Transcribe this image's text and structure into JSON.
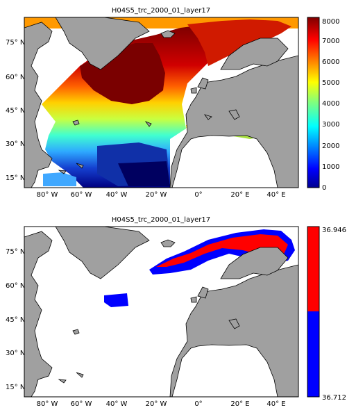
{
  "panels": [
    {
      "title": "H04S5_trc_2000_01_layer17",
      "lat_ticks": [
        "75° N",
        "60° N",
        "45° N",
        "30° N",
        "15° N"
      ],
      "lon_ticks": [
        "80° W",
        "60° W",
        "40° W",
        "20° W",
        "0°",
        "20° E",
        "40° E"
      ],
      "colorbar": {
        "ticks": [
          "8000",
          "7000",
          "6000",
          "5000",
          "4000",
          "3000",
          "2000",
          "1000",
          "0"
        ],
        "colormap": "jet"
      }
    },
    {
      "title": "H04S5_trc_2000_01_layer17",
      "lat_ticks": [
        "75° N",
        "60° N",
        "45° N",
        "30° N",
        "15° N"
      ],
      "lon_ticks": [
        "80° W",
        "60° W",
        "40° W",
        "20° W",
        "0°",
        "20° E",
        "40° E"
      ],
      "colorbar": {
        "ticks": [
          "36.946",
          "36.712"
        ],
        "colors": [
          "#ff0000",
          "#0000ff"
        ]
      }
    }
  ],
  "colors": {
    "land": "#a0a0a0",
    "ocean": "#ffffff",
    "frame": "#000000"
  }
}
